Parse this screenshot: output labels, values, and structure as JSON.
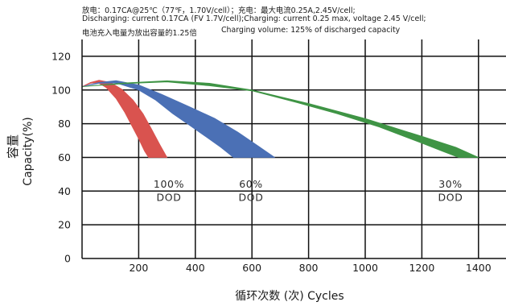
{
  "header_notes": [
    "放电：0.17CA@25℃（77℉，1.70V/cell）；充电：最大电流0.25A,2.45V/cell;",
    "Discharging: current 0.17CA (FV 1.7V/cell);Charging: current 0.25 max, voltage 2.45 V/cell;",
    "电池充入电量为放出容量的1.25倍",
    "Charging volume: 125% of discharged capacity"
  ],
  "chart_data": {
    "type": "area",
    "xlabel": "循环次数 (次) Cycles",
    "ylabel_cn": "容量",
    "ylabel": "Capacity(%)",
    "xlim": [
      0,
      1500
    ],
    "ylim": [
      0,
      130
    ],
    "x_ticks": [
      200,
      400,
      600,
      800,
      1000,
      1200,
      1400
    ],
    "y_ticks": [
      0,
      20,
      40,
      60,
      80,
      100,
      120
    ],
    "grid": true,
    "series": [
      {
        "name": "100% DOD",
        "label_lines": [
          "100%",
          "DOD"
        ],
        "color": "#d9534f",
        "upper": [
          [
            0,
            102
          ],
          [
            30,
            104.5
          ],
          [
            60,
            105.8
          ],
          [
            100,
            104.5
          ],
          [
            140,
            100.5
          ],
          [
            180,
            94
          ],
          [
            215,
            86
          ],
          [
            245,
            77
          ],
          [
            275,
            67.5
          ],
          [
            300,
            60
          ]
        ],
        "lower": [
          [
            0,
            102
          ],
          [
            30,
            104
          ],
          [
            55,
            104.5
          ],
          [
            85,
            101.5
          ],
          [
            120,
            95
          ],
          [
            150,
            87
          ],
          [
            175,
            79
          ],
          [
            200,
            71
          ],
          [
            220,
            64
          ],
          [
            235,
            60
          ]
        ]
      },
      {
        "name": "60% DOD",
        "label_lines": [
          "60%",
          "DOD"
        ],
        "color": "#4b70b5",
        "upper": [
          [
            0,
            102
          ],
          [
            60,
            104.5
          ],
          [
            120,
            105.6
          ],
          [
            200,
            103
          ],
          [
            280,
            97.5
          ],
          [
            380,
            90
          ],
          [
            470,
            83
          ],
          [
            550,
            75
          ],
          [
            620,
            67
          ],
          [
            680,
            60
          ]
        ],
        "lower": [
          [
            0,
            102
          ],
          [
            60,
            104
          ],
          [
            120,
            104.2
          ],
          [
            200,
            100
          ],
          [
            260,
            94
          ],
          [
            320,
            86
          ],
          [
            380,
            79
          ],
          [
            440,
            72
          ],
          [
            490,
            66
          ],
          [
            535,
            60
          ]
        ]
      },
      {
        "name": "30% DOD",
        "label_lines": [
          "30%",
          "DOD"
        ],
        "color": "#3f9445",
        "upper": [
          [
            0,
            102
          ],
          [
            150,
            104.2
          ],
          [
            300,
            105.5
          ],
          [
            450,
            104
          ],
          [
            600,
            100
          ],
          [
            800,
            92
          ],
          [
            1000,
            83
          ],
          [
            1200,
            72.5
          ],
          [
            1320,
            66
          ],
          [
            1400,
            60
          ]
        ],
        "lower": [
          [
            0,
            102
          ],
          [
            150,
            103.8
          ],
          [
            300,
            104.8
          ],
          [
            450,
            102.5
          ],
          [
            600,
            99.5
          ],
          [
            760,
            92.5
          ],
          [
            900,
            86
          ],
          [
            1050,
            78
          ],
          [
            1200,
            68.5
          ],
          [
            1275,
            63.5
          ],
          [
            1330,
            60
          ]
        ]
      }
    ]
  }
}
